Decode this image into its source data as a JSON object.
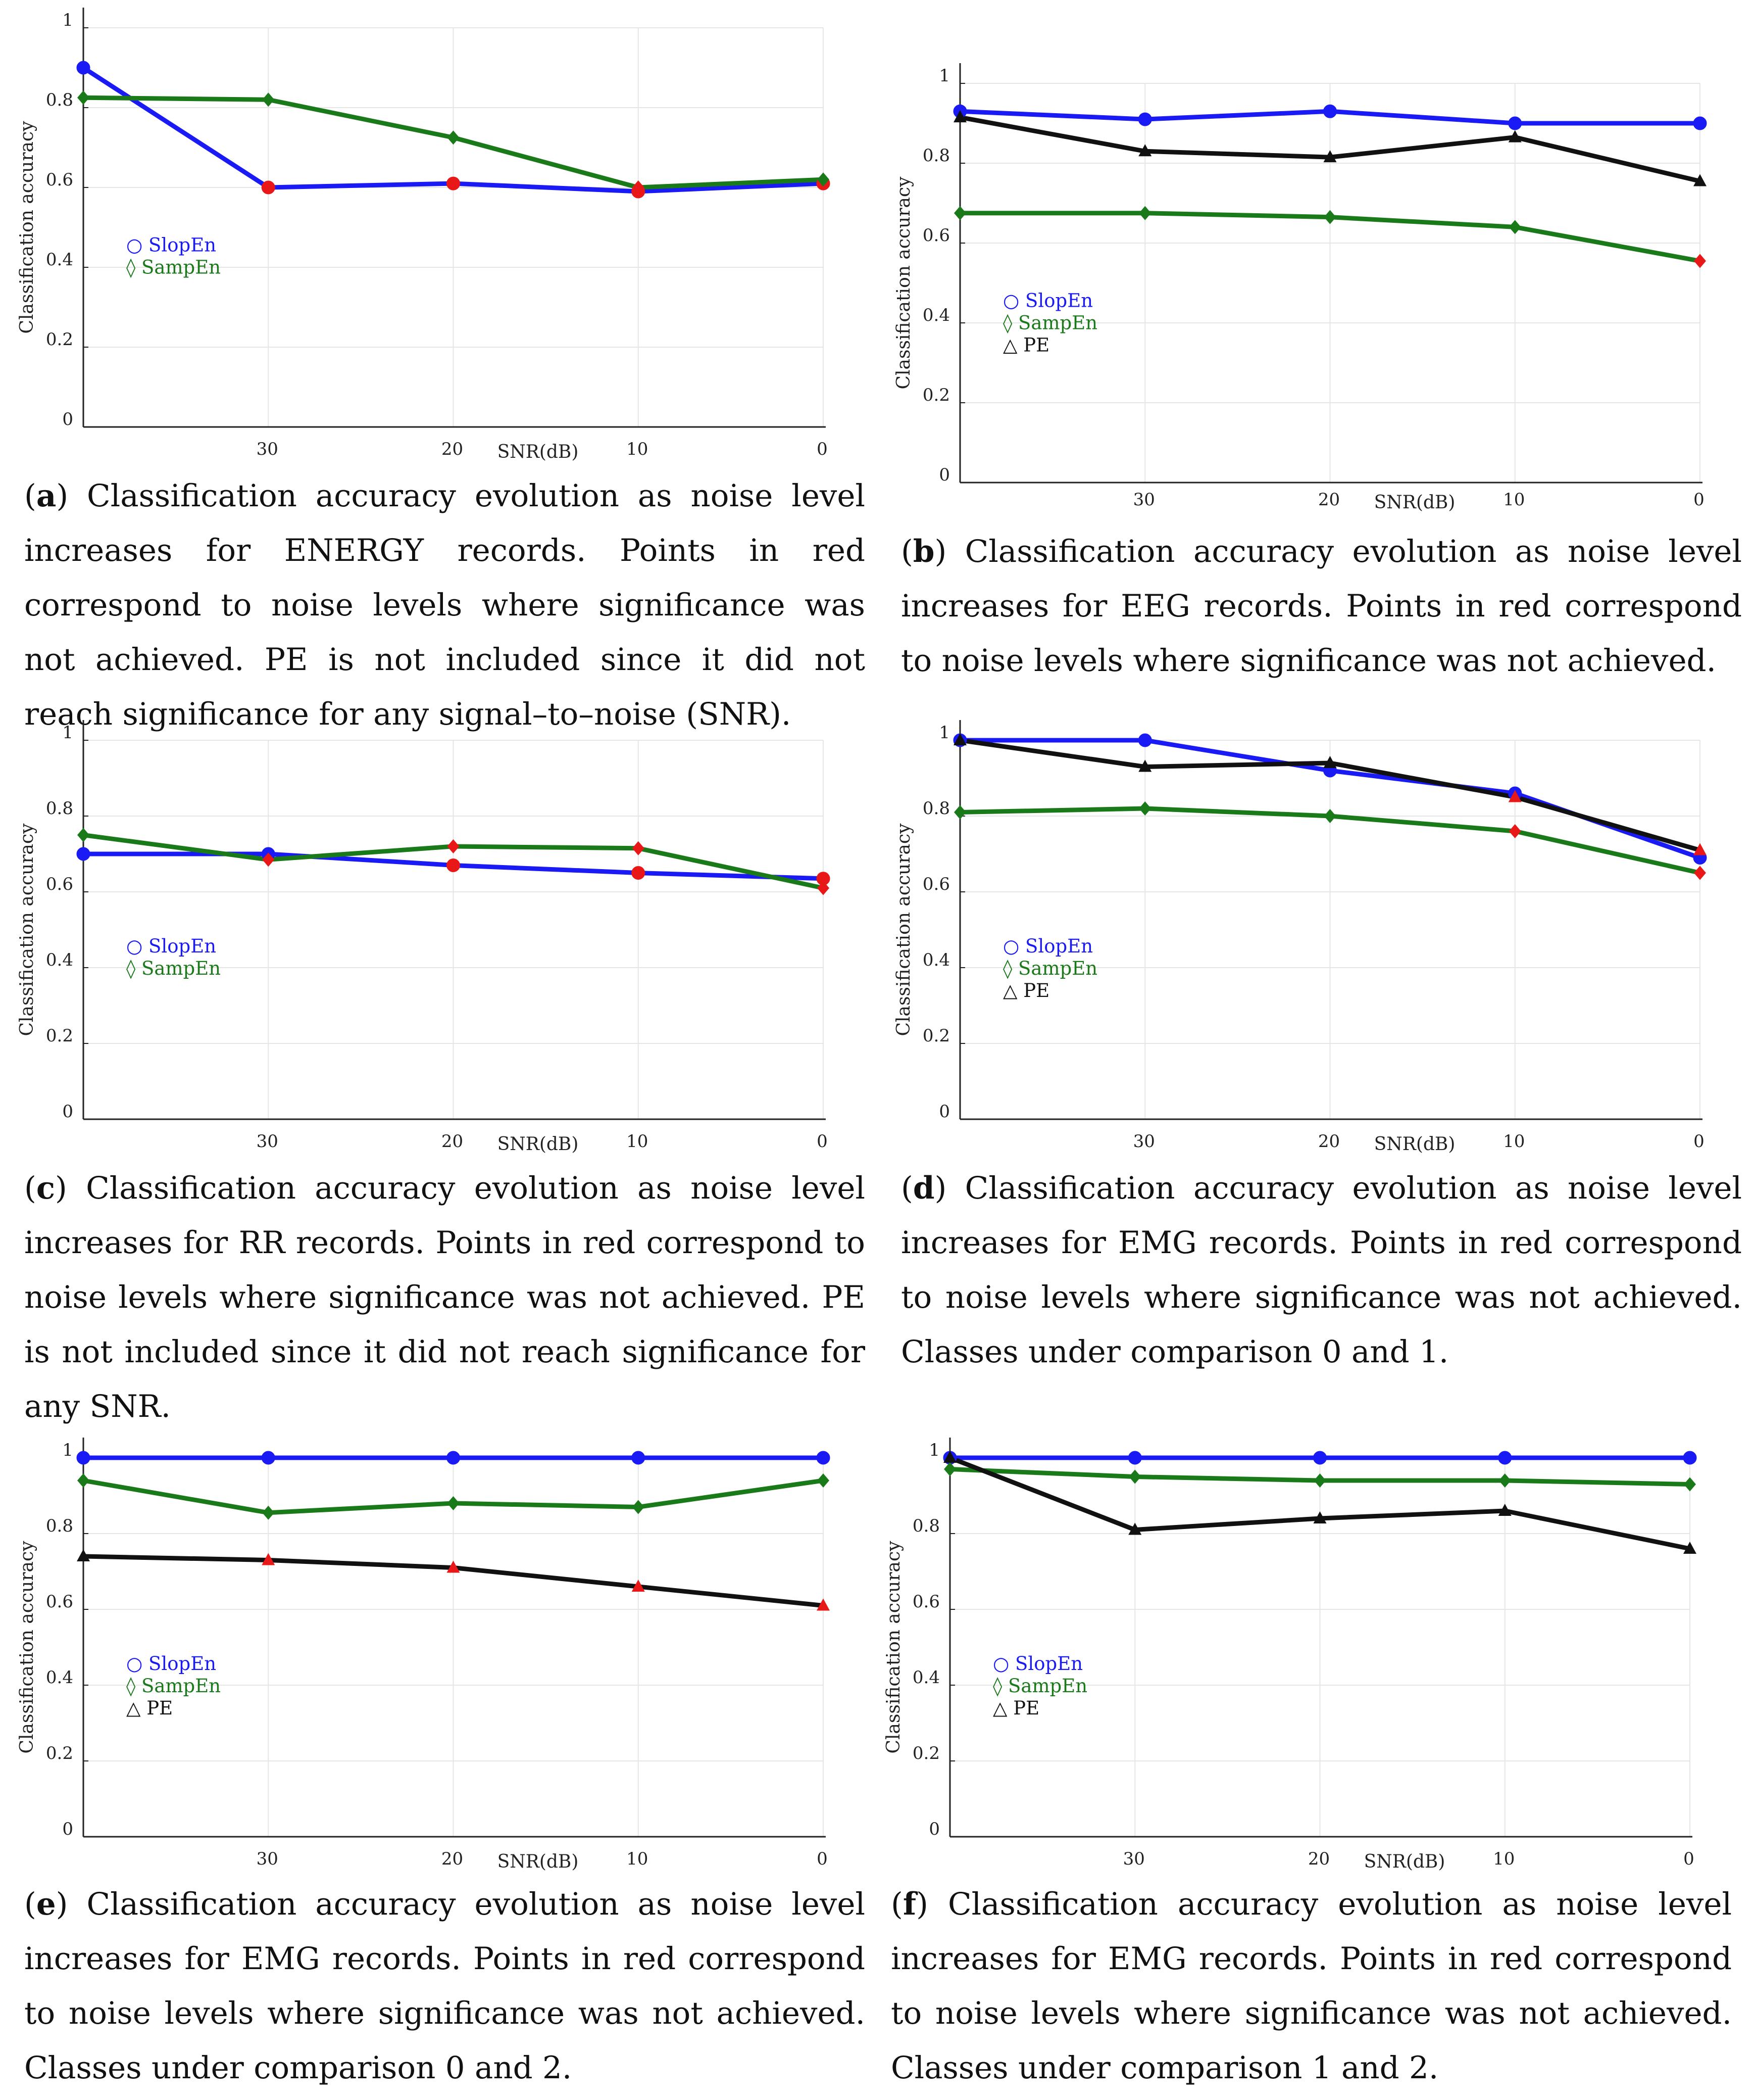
{
  "colors": {
    "slopen": "#1a1af5",
    "sampen": "#1a7a1a",
    "pe": "#111111",
    "nonsig": "#e81818",
    "grid": "#e6e6e6",
    "axis": "#222222"
  },
  "legend_symbols": {
    "slopen": "○",
    "sampen": "◊",
    "pe": "△"
  },
  "chart_data": [
    {
      "type": "line",
      "id": "a",
      "xlabel": "SNR(dB)",
      "ylabel": "Classification accuracy",
      "x_categories": [
        "",
        "30",
        "20",
        "10",
        "0"
      ],
      "ylim": [
        0,
        1
      ],
      "y_ticks": [
        "0",
        "0.2",
        "0.4",
        "0.6",
        "0.8",
        "1"
      ],
      "grid": true,
      "legend_position": "left-middle",
      "series": [
        {
          "name": "SlopEn",
          "key": "slopen",
          "values": [
            0.9,
            0.6,
            0.61,
            0.59,
            0.61
          ],
          "nonsig": [
            false,
            true,
            true,
            true,
            true
          ]
        },
        {
          "name": "SampEn",
          "key": "sampen",
          "values": [
            0.825,
            0.82,
            0.725,
            0.6,
            0.62
          ],
          "nonsig": [
            false,
            false,
            false,
            true,
            false
          ]
        }
      ]
    },
    {
      "type": "line",
      "id": "b",
      "xlabel": "SNR(dB)",
      "ylabel": "Classification accuracy",
      "x_categories": [
        "",
        "30",
        "20",
        "10",
        "0"
      ],
      "ylim": [
        0,
        1
      ],
      "y_ticks": [
        "0",
        "0.2",
        "0.4",
        "0.6",
        "0.8",
        "1"
      ],
      "grid": true,
      "legend_position": "left-middle",
      "series": [
        {
          "name": "SlopEn",
          "key": "slopen",
          "values": [
            0.93,
            0.91,
            0.93,
            0.9,
            0.9
          ],
          "nonsig": [
            false,
            false,
            false,
            false,
            false
          ]
        },
        {
          "name": "SampEn",
          "key": "sampen",
          "values": [
            0.675,
            0.675,
            0.665,
            0.64,
            0.555
          ],
          "nonsig": [
            false,
            false,
            false,
            false,
            true
          ]
        },
        {
          "name": "PE",
          "key": "pe",
          "values": [
            0.915,
            0.83,
            0.815,
            0.865,
            0.755
          ],
          "nonsig": [
            false,
            false,
            false,
            false,
            false
          ]
        }
      ]
    },
    {
      "type": "line",
      "id": "c",
      "xlabel": "SNR(dB)",
      "ylabel": "Classification accuracy",
      "x_categories": [
        "",
        "30",
        "20",
        "10",
        "0"
      ],
      "ylim": [
        0,
        1
      ],
      "y_ticks": [
        "0",
        "0.2",
        "0.4",
        "0.6",
        "0.8",
        "1"
      ],
      "grid": true,
      "legend_position": "left-middle",
      "series": [
        {
          "name": "SlopEn",
          "key": "slopen",
          "values": [
            0.7,
            0.7,
            0.67,
            0.65,
            0.635
          ],
          "nonsig": [
            false,
            false,
            true,
            true,
            true
          ]
        },
        {
          "name": "SampEn",
          "key": "sampen",
          "values": [
            0.75,
            0.685,
            0.72,
            0.715,
            0.61
          ],
          "nonsig": [
            false,
            true,
            true,
            true,
            true
          ]
        }
      ]
    },
    {
      "type": "line",
      "id": "d",
      "xlabel": "SNR(dB)",
      "ylabel": "Classification accuracy",
      "x_categories": [
        "",
        "30",
        "20",
        "10",
        "0"
      ],
      "ylim": [
        0,
        1
      ],
      "y_ticks": [
        "0",
        "0.2",
        "0.4",
        "0.6",
        "0.8",
        "1"
      ],
      "grid": true,
      "legend_position": "left-middle",
      "series": [
        {
          "name": "SlopEn",
          "key": "slopen",
          "values": [
            1.0,
            1.0,
            0.92,
            0.86,
            0.69
          ],
          "nonsig": [
            false,
            false,
            false,
            false,
            false
          ]
        },
        {
          "name": "SampEn",
          "key": "sampen",
          "values": [
            0.81,
            0.82,
            0.8,
            0.76,
            0.65
          ],
          "nonsig": [
            false,
            false,
            false,
            true,
            true
          ]
        },
        {
          "name": "PE",
          "key": "pe",
          "values": [
            1.0,
            0.93,
            0.94,
            0.85,
            0.71
          ],
          "nonsig": [
            false,
            false,
            false,
            true,
            true
          ]
        }
      ]
    },
    {
      "type": "line",
      "id": "e",
      "xlabel": "SNR(dB)",
      "ylabel": "Classification accuracy",
      "x_categories": [
        "",
        "30",
        "20",
        "10",
        "0"
      ],
      "ylim": [
        0,
        1
      ],
      "y_ticks": [
        "0",
        "0.2",
        "0.4",
        "0.6",
        "0.8",
        "1"
      ],
      "grid": true,
      "legend_position": "left-middle",
      "series": [
        {
          "name": "SlopEn",
          "key": "slopen",
          "values": [
            1.0,
            1.0,
            1.0,
            1.0,
            1.0
          ],
          "nonsig": [
            false,
            false,
            false,
            false,
            false
          ]
        },
        {
          "name": "SampEn",
          "key": "sampen",
          "values": [
            0.94,
            0.855,
            0.88,
            0.87,
            0.94
          ],
          "nonsig": [
            false,
            false,
            false,
            false,
            false
          ]
        },
        {
          "name": "PE",
          "key": "pe",
          "values": [
            0.74,
            0.73,
            0.71,
            0.66,
            0.61
          ],
          "nonsig": [
            false,
            true,
            true,
            true,
            true
          ]
        }
      ]
    },
    {
      "type": "line",
      "id": "f",
      "xlabel": "SNR(dB)",
      "ylabel": "Classification accuracy",
      "x_categories": [
        "",
        "30",
        "20",
        "10",
        "0"
      ],
      "ylim": [
        0,
        1
      ],
      "y_ticks": [
        "0",
        "0.2",
        "0.4",
        "0.6",
        "0.8",
        "1"
      ],
      "grid": true,
      "legend_position": "left-middle",
      "series": [
        {
          "name": "SlopEn",
          "key": "slopen",
          "values": [
            1.0,
            1.0,
            1.0,
            1.0,
            1.0
          ],
          "nonsig": [
            false,
            false,
            false,
            false,
            false
          ]
        },
        {
          "name": "SampEn",
          "key": "sampen",
          "values": [
            0.97,
            0.95,
            0.94,
            0.94,
            0.93
          ],
          "nonsig": [
            false,
            false,
            false,
            false,
            false
          ]
        },
        {
          "name": "PE",
          "key": "pe",
          "values": [
            1.0,
            0.81,
            0.84,
            0.86,
            0.76
          ],
          "nonsig": [
            false,
            false,
            false,
            false,
            false
          ]
        }
      ]
    }
  ],
  "captions": [
    {
      "label": "a",
      "text": "Classification accuracy evolution as noise level increases for ENERGY records.  Points in red correspond to noise levels where significance was not achieved.  PE is not included since it did not reach significance for any signal–to–noise (SNR)."
    },
    {
      "label": "b",
      "text": "Classification accuracy evolution as noise level increases for EEG records. Points in red correspond to noise levels where significance was not achieved."
    },
    {
      "label": "c",
      "text": "Classification accuracy evolution as noise level increases for RR records. Points in red correspond to noise levels where significance was not achieved. PE is not included since it did not reach significance for any SNR."
    },
    {
      "label": "d",
      "text": "Classification accuracy evolution as noise level increases for EMG records.  Points in red correspond to noise levels where significance was not achieved. Classes under comparison 0 and 1."
    },
    {
      "label": "e",
      "text": "Classification accuracy evolution as noise level increases for EMG records.  Points in red correspond to noise levels where significance was not achieved. Classes under comparison 0 and 2."
    },
    {
      "label": "f",
      "text": "Classification accuracy evolution as noise level increases for EMG records.  Points in red correspond to noise levels where significance was not achieved. Classes under comparison 1 and 2."
    }
  ]
}
